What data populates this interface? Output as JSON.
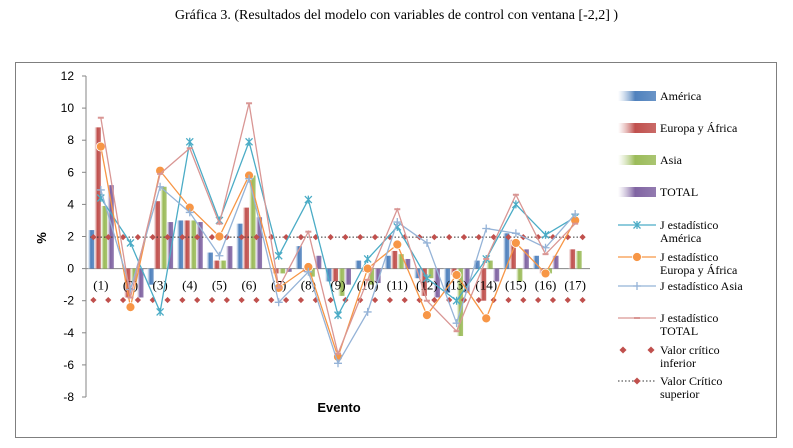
{
  "title": "Gráfica 3. (Resultados del modelo con variables de control con ventana [-2,2] )",
  "chart_data": {
    "type": "bar",
    "xlabel": "Evento",
    "ylabel": "%",
    "ylim": [
      -8,
      12
    ],
    "yticks": [
      12,
      10,
      8,
      6,
      4,
      2,
      0,
      -2,
      -4,
      -6,
      -8
    ],
    "grid": false,
    "legend_position": "right",
    "categories": [
      "(1)",
      "(2)",
      "(3)",
      "(4)",
      "(5)",
      "(6)",
      "(7)",
      "(8)",
      "(9)",
      "(10)",
      "(11)",
      "(12)",
      "(13)",
      "(14)",
      "(15)",
      "(16)",
      "(17)"
    ],
    "bar_series": [
      {
        "name": "América",
        "color": "#4f81bd",
        "values": [
          2.4,
          0.0,
          -1.0,
          3.0,
          1.0,
          2.8,
          0.0,
          1.4,
          -0.8,
          0.5,
          0.8,
          -0.6,
          -1.5,
          0.5,
          2.2,
          0.8,
          0.0
        ]
      },
      {
        "name": "Europa y África",
        "color": "#c0504d",
        "values": [
          8.8,
          -1.8,
          4.2,
          3.0,
          0.5,
          3.8,
          -0.3,
          -0.2,
          -0.8,
          -0.2,
          1.1,
          -1.7,
          -0.4,
          -2.0,
          1.8,
          -0.3,
          1.2
        ]
      },
      {
        "name": "Asia",
        "color": "#9bbb59",
        "values": [
          3.9,
          -0.8,
          5.1,
          3.0,
          0.5,
          5.8,
          -0.3,
          -0.5,
          -1.7,
          -1.0,
          0.9,
          -0.6,
          -4.2,
          0.5,
          -0.8,
          -0.3,
          1.1
        ]
      },
      {
        "name": "TOTAL",
        "color": "#8064a2",
        "values": [
          5.2,
          -1.8,
          2.9,
          2.9,
          1.4,
          3.2,
          -0.2,
          0.8,
          -1.0,
          -0.9,
          0.6,
          -1.8,
          -1.5,
          -0.8,
          1.2,
          0.8,
          0.0
        ]
      }
    ],
    "line_series": [
      {
        "name": "J estadístico América",
        "color": "#4bacc6",
        "marker": "star",
        "values": [
          4.4,
          1.6,
          -2.7,
          7.9,
          3.0,
          7.9,
          0.8,
          4.3,
          -2.9,
          0.6,
          2.6,
          -0.6,
          -2.0,
          0.6,
          4.0,
          2.1,
          3.2
        ]
      },
      {
        "name": "J estadístico Europa y África",
        "color": "#f79646",
        "marker": "circle",
        "values": [
          7.6,
          -2.4,
          6.1,
          3.8,
          2.0,
          5.8,
          -1.2,
          0.1,
          -5.5,
          0.0,
          1.5,
          -2.9,
          -0.4,
          -3.1,
          1.6,
          -0.3,
          3.0
        ]
      },
      {
        "name": "J estadístico Asia",
        "color": "#95b3d7",
        "marker": "plus",
        "values": [
          4.9,
          -1.3,
          5.1,
          3.5,
          0.8,
          5.6,
          -2.1,
          -0.2,
          -5.9,
          -2.7,
          2.9,
          1.6,
          -3.4,
          2.5,
          2.2,
          1.3,
          3.4
        ]
      },
      {
        "name": "J estadístico TOTAL",
        "color": "#d99694",
        "marker": "dash",
        "values": [
          9.4,
          -1.8,
          5.9,
          7.5,
          2.8,
          10.3,
          -1.2,
          2.3,
          -5.3,
          -0.7,
          3.7,
          -2.0,
          -3.9,
          0.6,
          4.6,
          0.9,
          2.8
        ]
      }
    ],
    "reference_series": [
      {
        "name": "Valor crítico inferior",
        "color": "#c0504d",
        "marker": "diamond",
        "value": -1.96
      },
      {
        "name": "Valor Crítico superior",
        "color": "#c0504d",
        "marker": "diamond",
        "value": 1.96
      }
    ]
  }
}
